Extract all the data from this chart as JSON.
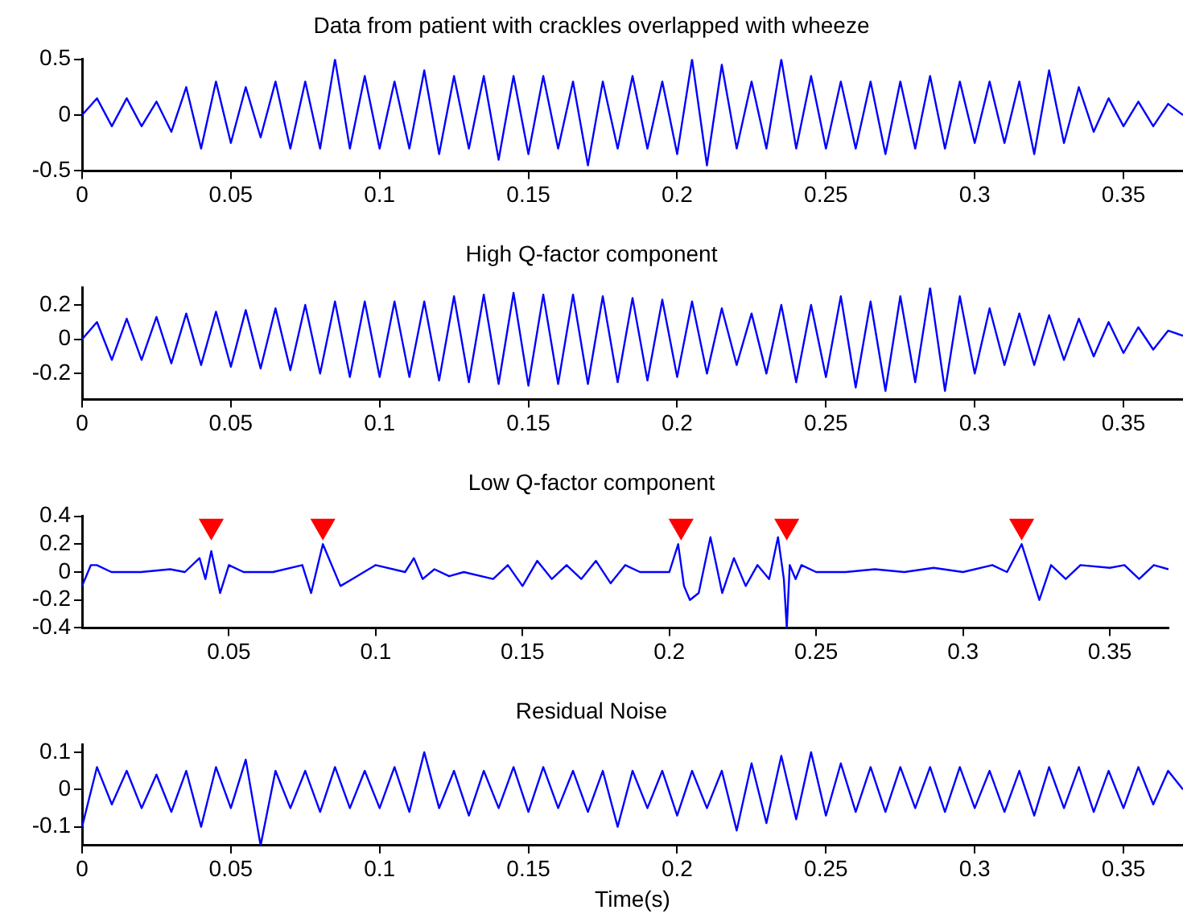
{
  "chart_data": [
    {
      "type": "line",
      "title": "Data from patient with crackles overlapped with wheeze",
      "xlim": [
        0,
        0.37
      ],
      "xticks": [
        0,
        0.05,
        0.1,
        0.15,
        0.2,
        0.25,
        0.3,
        0.35
      ],
      "ylim": [
        -0.5,
        0.5
      ],
      "yticks": [
        -0.5,
        0,
        0.5
      ],
      "grid": false,
      "legend": false,
      "marker": "none",
      "x": [
        0,
        0.005,
        0.01,
        0.015,
        0.02,
        0.025,
        0.03,
        0.035,
        0.04,
        0.045,
        0.05,
        0.055,
        0.06,
        0.065,
        0.07,
        0.075,
        0.08,
        0.085,
        0.09,
        0.095,
        0.1,
        0.105,
        0.11,
        0.115,
        0.12,
        0.125,
        0.13,
        0.135,
        0.14,
        0.145,
        0.15,
        0.155,
        0.16,
        0.165,
        0.17,
        0.175,
        0.18,
        0.185,
        0.19,
        0.195,
        0.2,
        0.205,
        0.21,
        0.215,
        0.22,
        0.225,
        0.23,
        0.235,
        0.24,
        0.245,
        0.25,
        0.255,
        0.26,
        0.265,
        0.27,
        0.275,
        0.28,
        0.285,
        0.29,
        0.295,
        0.3,
        0.305,
        0.31,
        0.315,
        0.32,
        0.325,
        0.33,
        0.335,
        0.34,
        0.345,
        0.35,
        0.355,
        0.36,
        0.365,
        0.37
      ],
      "series": [
        {
          "color": "#0000ff",
          "values": [
            0,
            0.15,
            -0.1,
            0.15,
            -0.1,
            0.12,
            -0.15,
            0.25,
            -0.3,
            0.3,
            -0.25,
            0.25,
            -0.2,
            0.3,
            -0.3,
            0.3,
            -0.3,
            0.5,
            -0.3,
            0.35,
            -0.3,
            0.3,
            -0.3,
            0.4,
            -0.35,
            0.35,
            -0.3,
            0.35,
            -0.4,
            0.35,
            -0.35,
            0.35,
            -0.3,
            0.3,
            -0.45,
            0.3,
            -0.3,
            0.35,
            -0.3,
            0.3,
            -0.35,
            0.5,
            -0.45,
            0.45,
            -0.3,
            0.3,
            -0.3,
            0.5,
            -0.3,
            0.35,
            -0.3,
            0.3,
            -0.3,
            0.3,
            -0.35,
            0.3,
            -0.3,
            0.35,
            -0.3,
            0.3,
            -0.25,
            0.3,
            -0.25,
            0.3,
            -0.35,
            0.4,
            -0.25,
            0.25,
            -0.15,
            0.15,
            -0.1,
            0.12,
            -0.1,
            0.1,
            0
          ]
        }
      ]
    },
    {
      "type": "line",
      "title": "High Q-factor component",
      "xlim": [
        0,
        0.37
      ],
      "xticks": [
        0,
        0.05,
        0.1,
        0.15,
        0.2,
        0.25,
        0.3,
        0.35
      ],
      "ylim": [
        -0.35,
        0.3
      ],
      "yticks": [
        -0.2,
        0,
        0.2
      ],
      "grid": false,
      "legend": false,
      "marker": "none",
      "x": [
        0,
        0.005,
        0.01,
        0.015,
        0.02,
        0.025,
        0.03,
        0.035,
        0.04,
        0.045,
        0.05,
        0.055,
        0.06,
        0.065,
        0.07,
        0.075,
        0.08,
        0.085,
        0.09,
        0.095,
        0.1,
        0.105,
        0.11,
        0.115,
        0.12,
        0.125,
        0.13,
        0.135,
        0.14,
        0.145,
        0.15,
        0.155,
        0.16,
        0.165,
        0.17,
        0.175,
        0.18,
        0.185,
        0.19,
        0.195,
        0.2,
        0.205,
        0.21,
        0.215,
        0.22,
        0.225,
        0.23,
        0.235,
        0.24,
        0.245,
        0.25,
        0.255,
        0.26,
        0.265,
        0.27,
        0.275,
        0.28,
        0.285,
        0.29,
        0.295,
        0.3,
        0.305,
        0.31,
        0.315,
        0.32,
        0.325,
        0.33,
        0.335,
        0.34,
        0.345,
        0.35,
        0.355,
        0.36,
        0.365,
        0.37
      ],
      "series": [
        {
          "color": "#0000ff",
          "values": [
            0,
            0.1,
            -0.12,
            0.12,
            -0.12,
            0.13,
            -0.14,
            0.15,
            -0.15,
            0.16,
            -0.16,
            0.17,
            -0.17,
            0.18,
            -0.18,
            0.2,
            -0.2,
            0.22,
            -0.22,
            0.22,
            -0.22,
            0.22,
            -0.22,
            0.22,
            -0.24,
            0.25,
            -0.25,
            0.26,
            -0.26,
            0.27,
            -0.27,
            0.26,
            -0.26,
            0.26,
            -0.26,
            0.25,
            -0.25,
            0.24,
            -0.24,
            0.23,
            -0.22,
            0.22,
            -0.2,
            0.18,
            -0.15,
            0.15,
            -0.2,
            0.2,
            -0.25,
            0.2,
            -0.22,
            0.25,
            -0.28,
            0.22,
            -0.3,
            0.25,
            -0.25,
            0.3,
            -0.3,
            0.25,
            -0.2,
            0.18,
            -0.15,
            0.15,
            -0.15,
            0.14,
            -0.12,
            0.12,
            -0.1,
            0.1,
            -0.08,
            0.07,
            -0.06,
            0.05,
            0.02
          ]
        }
      ]
    },
    {
      "type": "line",
      "title": "Low Q-factor component",
      "xlim": [
        0,
        0.37
      ],
      "xticks": [
        0.05,
        0.1,
        0.15,
        0.2,
        0.25,
        0.3,
        0.35
      ],
      "ylim": [
        -0.4,
        0.4
      ],
      "yticks": [
        -0.4,
        -0.2,
        0,
        0.2,
        0.4
      ],
      "grid": false,
      "legend": false,
      "marker": "none",
      "series": [
        {
          "color": "#0000ff",
          "x": [
            0,
            0.003,
            0.005,
            0.01,
            0.02,
            0.03,
            0.035,
            0.04,
            0.042,
            0.044,
            0.047,
            0.05,
            0.055,
            0.065,
            0.075,
            0.078,
            0.082,
            0.088,
            0.092,
            0.1,
            0.11,
            0.113,
            0.116,
            0.12,
            0.125,
            0.13,
            0.14,
            0.145,
            0.15,
            0.155,
            0.16,
            0.165,
            0.17,
            0.175,
            0.18,
            0.185,
            0.19,
            0.2,
            0.203,
            0.205,
            0.207,
            0.21,
            0.214,
            0.218,
            0.222,
            0.226,
            0.23,
            0.234,
            0.237,
            0.239,
            0.24,
            0.241,
            0.243,
            0.245,
            0.25,
            0.26,
            0.27,
            0.28,
            0.29,
            0.3,
            0.31,
            0.315,
            0.32,
            0.326,
            0.33,
            0.335,
            0.34,
            0.35,
            0.355,
            0.36,
            0.365,
            0.37
          ],
          "values": [
            -0.1,
            0.05,
            0.05,
            0,
            0,
            0.02,
            0,
            0.1,
            -0.05,
            0.15,
            -0.15,
            0.05,
            0,
            0,
            0.05,
            -0.15,
            0.2,
            -0.1,
            -0.05,
            0.05,
            0,
            0.1,
            -0.05,
            0.02,
            -0.03,
            0,
            -0.05,
            0.05,
            -0.1,
            0.08,
            -0.05,
            0.05,
            -0.05,
            0.08,
            -0.08,
            0.05,
            0,
            0,
            0.2,
            -0.1,
            -0.2,
            -0.15,
            0.25,
            -0.15,
            0.1,
            -0.1,
            0.05,
            -0.05,
            0.25,
            -0.05,
            -0.4,
            0.05,
            -0.05,
            0.05,
            0,
            0,
            0.02,
            0,
            0.03,
            0,
            0.05,
            0,
            0.2,
            -0.2,
            0.05,
            -0.05,
            0.05,
            0.03,
            0.05,
            -0.05,
            0.05,
            0.02
          ]
        },
        {
          "type": "scatter",
          "marker": "triangle",
          "color": "#ff0000",
          "x": [
            0.044,
            0.082,
            0.204,
            0.24,
            0.32
          ],
          "values": [
            0.33,
            0.33,
            0.33,
            0.33,
            0.33
          ]
        }
      ]
    },
    {
      "type": "line",
      "title": "Residual Noise",
      "xlabel": "Time(s)",
      "xlim": [
        0,
        0.37
      ],
      "xticks": [
        0,
        0.05,
        0.1,
        0.15,
        0.2,
        0.25,
        0.3,
        0.35
      ],
      "ylim": [
        -0.15,
        0.12
      ],
      "yticks": [
        -0.1,
        0,
        0.1
      ],
      "grid": false,
      "legend": false,
      "marker": "none",
      "x": [
        0,
        0.005,
        0.01,
        0.015,
        0.02,
        0.025,
        0.03,
        0.035,
        0.04,
        0.045,
        0.05,
        0.055,
        0.06,
        0.065,
        0.07,
        0.075,
        0.08,
        0.085,
        0.09,
        0.095,
        0.1,
        0.105,
        0.11,
        0.115,
        0.12,
        0.125,
        0.13,
        0.135,
        0.14,
        0.145,
        0.15,
        0.155,
        0.16,
        0.165,
        0.17,
        0.175,
        0.18,
        0.185,
        0.19,
        0.195,
        0.2,
        0.205,
        0.21,
        0.215,
        0.22,
        0.225,
        0.23,
        0.235,
        0.24,
        0.245,
        0.25,
        0.255,
        0.26,
        0.265,
        0.27,
        0.275,
        0.28,
        0.285,
        0.29,
        0.295,
        0.3,
        0.305,
        0.31,
        0.315,
        0.32,
        0.325,
        0.33,
        0.335,
        0.34,
        0.345,
        0.35,
        0.355,
        0.36,
        0.365,
        0.37
      ],
      "series": [
        {
          "color": "#0000ff",
          "values": [
            -0.1,
            0.06,
            -0.04,
            0.05,
            -0.05,
            0.04,
            -0.06,
            0.05,
            -0.1,
            0.06,
            -0.05,
            0.08,
            -0.15,
            0.05,
            -0.05,
            0.05,
            -0.06,
            0.06,
            -0.05,
            0.05,
            -0.05,
            0.06,
            -0.06,
            0.1,
            -0.05,
            0.05,
            -0.07,
            0.05,
            -0.05,
            0.06,
            -0.06,
            0.06,
            -0.05,
            0.05,
            -0.06,
            0.05,
            -0.1,
            0.05,
            -0.05,
            0.05,
            -0.07,
            0.05,
            -0.05,
            0.05,
            -0.11,
            0.07,
            -0.09,
            0.09,
            -0.08,
            0.1,
            -0.07,
            0.07,
            -0.06,
            0.06,
            -0.06,
            0.06,
            -0.05,
            0.06,
            -0.06,
            0.06,
            -0.05,
            0.05,
            -0.06,
            0.05,
            -0.07,
            0.06,
            -0.05,
            0.06,
            -0.06,
            0.05,
            -0.05,
            0.06,
            -0.04,
            0.05,
            0
          ]
        }
      ]
    }
  ]
}
